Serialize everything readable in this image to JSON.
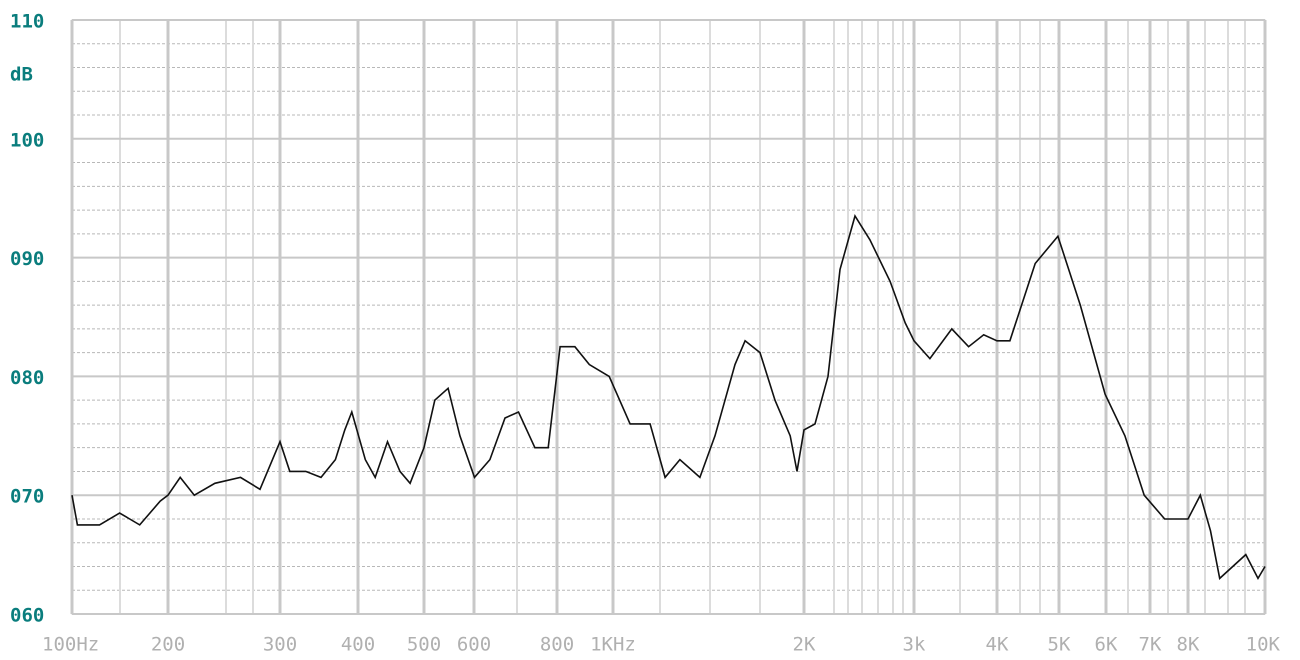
{
  "chart_data": {
    "type": "line",
    "ylabel": "dB",
    "xscale": "log",
    "xlim": [
      100,
      10000
    ],
    "xticks": [
      {
        "value": 100,
        "label": "100Hz"
      },
      200,
      300,
      400,
      500,
      600,
      800,
      {
        "value": 1000,
        "label": "1KHz"
      },
      {
        "value": 2000,
        "label": "2K"
      },
      {
        "value": 3000,
        "label": "3k"
      },
      {
        "value": 4000,
        "label": "4K"
      },
      {
        "value": 5000,
        "label": "5K"
      },
      {
        "value": 6000,
        "label": "6K"
      },
      {
        "value": 7000,
        "label": "7K"
      },
      {
        "value": 8000,
        "label": "8K"
      },
      {
        "value": 10000,
        "label": "10K"
      }
    ],
    "ylim": [
      60,
      110
    ],
    "yticks": [
      {
        "value": 60,
        "label": "060"
      },
      {
        "value": 70,
        "label": "070"
      },
      {
        "value": 80,
        "label": "080"
      },
      {
        "value": 90,
        "label": "090"
      },
      100,
      110
    ],
    "grid": true,
    "series": [
      {
        "color": "#111111",
        "x": [
          100,
          104,
          122,
          141,
          163,
          189,
          200,
          209,
          220,
          237,
          260,
          279,
          292,
          300,
          311,
          330,
          349,
          368,
          381,
          391,
          410,
          424,
          442,
          461,
          477,
          500,
          520,
          546,
          570,
          601,
          634,
          668,
          700,
          741,
          776,
          810,
          859,
          910,
          985,
          1064,
          1144,
          1208,
          1275,
          1371,
          1448,
          1557,
          1615,
          1705,
          1800,
          1902,
          1950,
          2000,
          2083,
          2185,
          2284,
          2414,
          2550,
          2747,
          2904,
          3000,
          3170,
          3420,
          3625,
          3820,
          4000,
          4190,
          4590,
          4980,
          5430,
          5980,
          6410,
          6860,
          7370,
          8000,
          8290,
          8540,
          8770,
          9460,
          9800,
          10000
        ],
        "values": [
          70,
          67.5,
          67.5,
          68.5,
          67.5,
          69.5,
          70,
          71.5,
          70,
          71,
          71.5,
          70.5,
          73,
          74.5,
          72,
          72,
          71.5,
          73,
          75.5,
          77,
          73,
          71.5,
          74.5,
          72,
          71,
          74,
          78,
          79,
          75,
          71.5,
          73,
          76.5,
          77,
          74,
          74,
          82.5,
          82.5,
          81,
          80,
          76,
          76,
          71.5,
          73,
          71.5,
          75,
          81,
          83,
          82,
          78,
          75,
          72,
          75.5,
          76,
          80,
          89,
          93.5,
          91.5,
          88,
          84.5,
          83,
          81.5,
          84,
          82.5,
          83.5,
          83,
          83,
          89.5,
          91.8,
          86,
          78.5,
          75,
          70,
          68,
          68,
          70,
          67,
          63,
          65,
          63,
          64
        ]
      }
    ]
  }
}
